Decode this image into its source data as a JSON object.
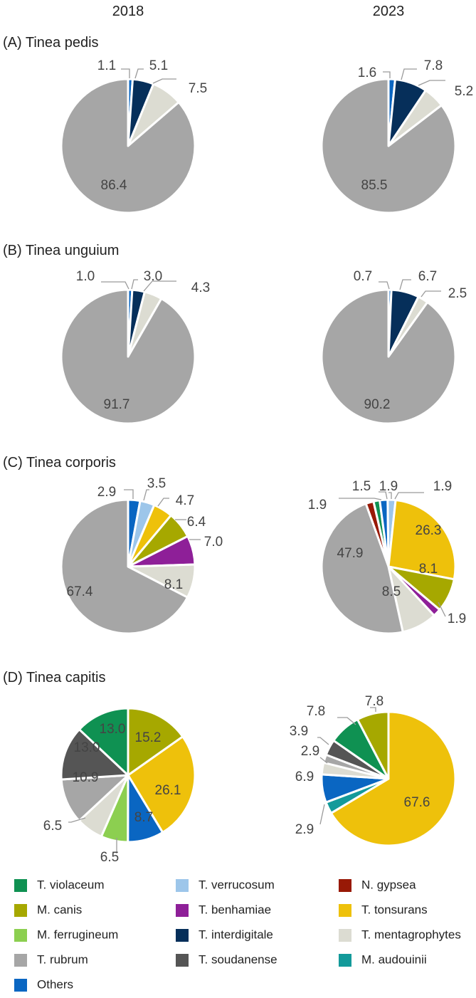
{
  "years": [
    "2018",
    "2023"
  ],
  "colors": {
    "T. violaceum": "#0f9152",
    "M. canis": "#a6a800",
    "M. ferrugineum": "#8ccf50",
    "T. rubrum": "#a6a6a6",
    "Others": "#0a66c2",
    "T. verrucosum": "#9dc6ea",
    "T. benhamiae": "#8e1f98",
    "T. interdigitale": "#062f5a",
    "T. soudanense": "#555555",
    "N. gypsea": "#981906",
    "T. tonsurans": "#eec10b",
    "T. mentagrophytes": "#dcdcd2",
    "M. audouinii": "#139a9a"
  },
  "legend": [
    "T. violaceum",
    "T. verrucosum",
    "N. gypsea",
    "M. canis",
    "T. benhamiae",
    "T. tonsurans",
    "M. ferrugineum",
    "T. interdigitale",
    "T. mentagrophytes",
    "T. rubrum",
    "T. soudanense",
    "M. audouinii",
    "Others"
  ],
  "chart_data": [
    {
      "type": "pie",
      "title": "(A) Tinea pedis",
      "year": "2018",
      "slices": [
        {
          "name": "Others",
          "value": 1.1,
          "label": "1.1"
        },
        {
          "name": "T. interdigitale",
          "value": 5.1,
          "label": "5.1"
        },
        {
          "name": "T. mentagrophytes",
          "value": 7.5,
          "label": "7.5"
        },
        {
          "name": "T. rubrum",
          "value": 86.4,
          "label": "86.4"
        }
      ]
    },
    {
      "type": "pie",
      "title": "",
      "year": "2023",
      "slices": [
        {
          "name": "Others",
          "value": 1.6,
          "label": "1.6"
        },
        {
          "name": "T. interdigitale",
          "value": 7.8,
          "label": "7.8"
        },
        {
          "name": "T. mentagrophytes",
          "value": 5.2,
          "label": "5.2"
        },
        {
          "name": "T. rubrum",
          "value": 85.5,
          "label": "85.5"
        }
      ]
    },
    {
      "type": "pie",
      "title": "(B) Tinea unguium",
      "year": "2018",
      "slices": [
        {
          "name": "Others",
          "value": 1.0,
          "label": "1.0"
        },
        {
          "name": "T. interdigitale",
          "value": 3.0,
          "label": "3.0"
        },
        {
          "name": "T. mentagrophytes",
          "value": 4.3,
          "label": "4.3"
        },
        {
          "name": "T. rubrum",
          "value": 91.7,
          "label": "91.7"
        }
      ]
    },
    {
      "type": "pie",
      "title": "",
      "year": "2023",
      "slices": [
        {
          "name": "Others",
          "value": 0.7,
          "label": "0.7"
        },
        {
          "name": "T. interdigitale",
          "value": 6.7,
          "label": "6.7"
        },
        {
          "name": "T. mentagrophytes",
          "value": 2.5,
          "label": "2.5"
        },
        {
          "name": "T. rubrum",
          "value": 90.2,
          "label": "90.2"
        }
      ]
    },
    {
      "type": "pie",
      "title": "(C) Tinea corporis",
      "year": "2018",
      "slices": [
        {
          "name": "Others",
          "value": 2.9,
          "label": "2.9"
        },
        {
          "name": "T. verrucosum",
          "value": 3.5,
          "label": "3.5"
        },
        {
          "name": "T. tonsurans",
          "value": 4.7,
          "label": "4.7"
        },
        {
          "name": "M. canis",
          "value": 6.4,
          "label": "6.4"
        },
        {
          "name": "T. benhamiae",
          "value": 7.0,
          "label": "7.0"
        },
        {
          "name": "T. mentagrophytes",
          "value": 8.1,
          "label": "8.1"
        },
        {
          "name": "T. rubrum",
          "value": 67.4,
          "label": "67.4"
        }
      ]
    },
    {
      "type": "pie",
      "title": "",
      "year": "2023",
      "slices": [
        {
          "name": "N. gypsea",
          "value": 1.9,
          "label": "1.9"
        },
        {
          "name": "T. violaceum",
          "value": 1.5,
          "label": "1.5"
        },
        {
          "name": "Others",
          "value": 1.9,
          "label": "1.9"
        },
        {
          "name": "T. verrucosum",
          "value": 1.9,
          "label": "1.9"
        },
        {
          "name": "T. tonsurans",
          "value": 26.3,
          "label": "26.3"
        },
        {
          "name": "M. canis",
          "value": 8.1,
          "label": "8.1"
        },
        {
          "name": "T. benhamiae",
          "value": 1.9,
          "label": "1.9"
        },
        {
          "name": "T. mentagrophytes",
          "value": 8.5,
          "label": "8.5"
        },
        {
          "name": "T. rubrum",
          "value": 47.9,
          "label": "47.9"
        }
      ]
    },
    {
      "type": "pie",
      "title": "(D) Tinea capitis",
      "year": "2018",
      "slices": [
        {
          "name": "M. canis",
          "value": 15.2,
          "label": "15.2"
        },
        {
          "name": "T. tonsurans",
          "value": 26.1,
          "label": "26.1"
        },
        {
          "name": "Others",
          "value": 8.7,
          "label": "8.7"
        },
        {
          "name": "M. ferrugineum",
          "value": 6.5,
          "label": "6.5"
        },
        {
          "name": "T. mentagrophytes",
          "value": 6.5,
          "label": "6.5"
        },
        {
          "name": "T. rubrum",
          "value": 10.9,
          "label": "10.9"
        },
        {
          "name": "T. soudanense",
          "value": 13.0,
          "label": "13.0"
        },
        {
          "name": "T. violaceum",
          "value": 13.0,
          "label": "13.0"
        }
      ]
    },
    {
      "type": "pie",
      "title": "",
      "year": "2023",
      "slices": [
        {
          "name": "T. tonsurans",
          "value": 67.6,
          "label": "67.6"
        },
        {
          "name": "M. audouinii",
          "value": 2.9,
          "label": "2.9"
        },
        {
          "name": "Others",
          "value": 6.9,
          "label": "6.9"
        },
        {
          "name": "T. mentagrophytes",
          "value": 2.9,
          "label": "2.9"
        },
        {
          "name": "T. rubrum",
          "value": 2.0,
          "label": ""
        },
        {
          "name": "T. soudanense",
          "value": 3.9,
          "label": "3.9"
        },
        {
          "name": "T. violaceum",
          "value": 7.8,
          "label": "7.8"
        },
        {
          "name": "M. canis",
          "value": 7.8,
          "label": "7.8"
        }
      ]
    }
  ]
}
